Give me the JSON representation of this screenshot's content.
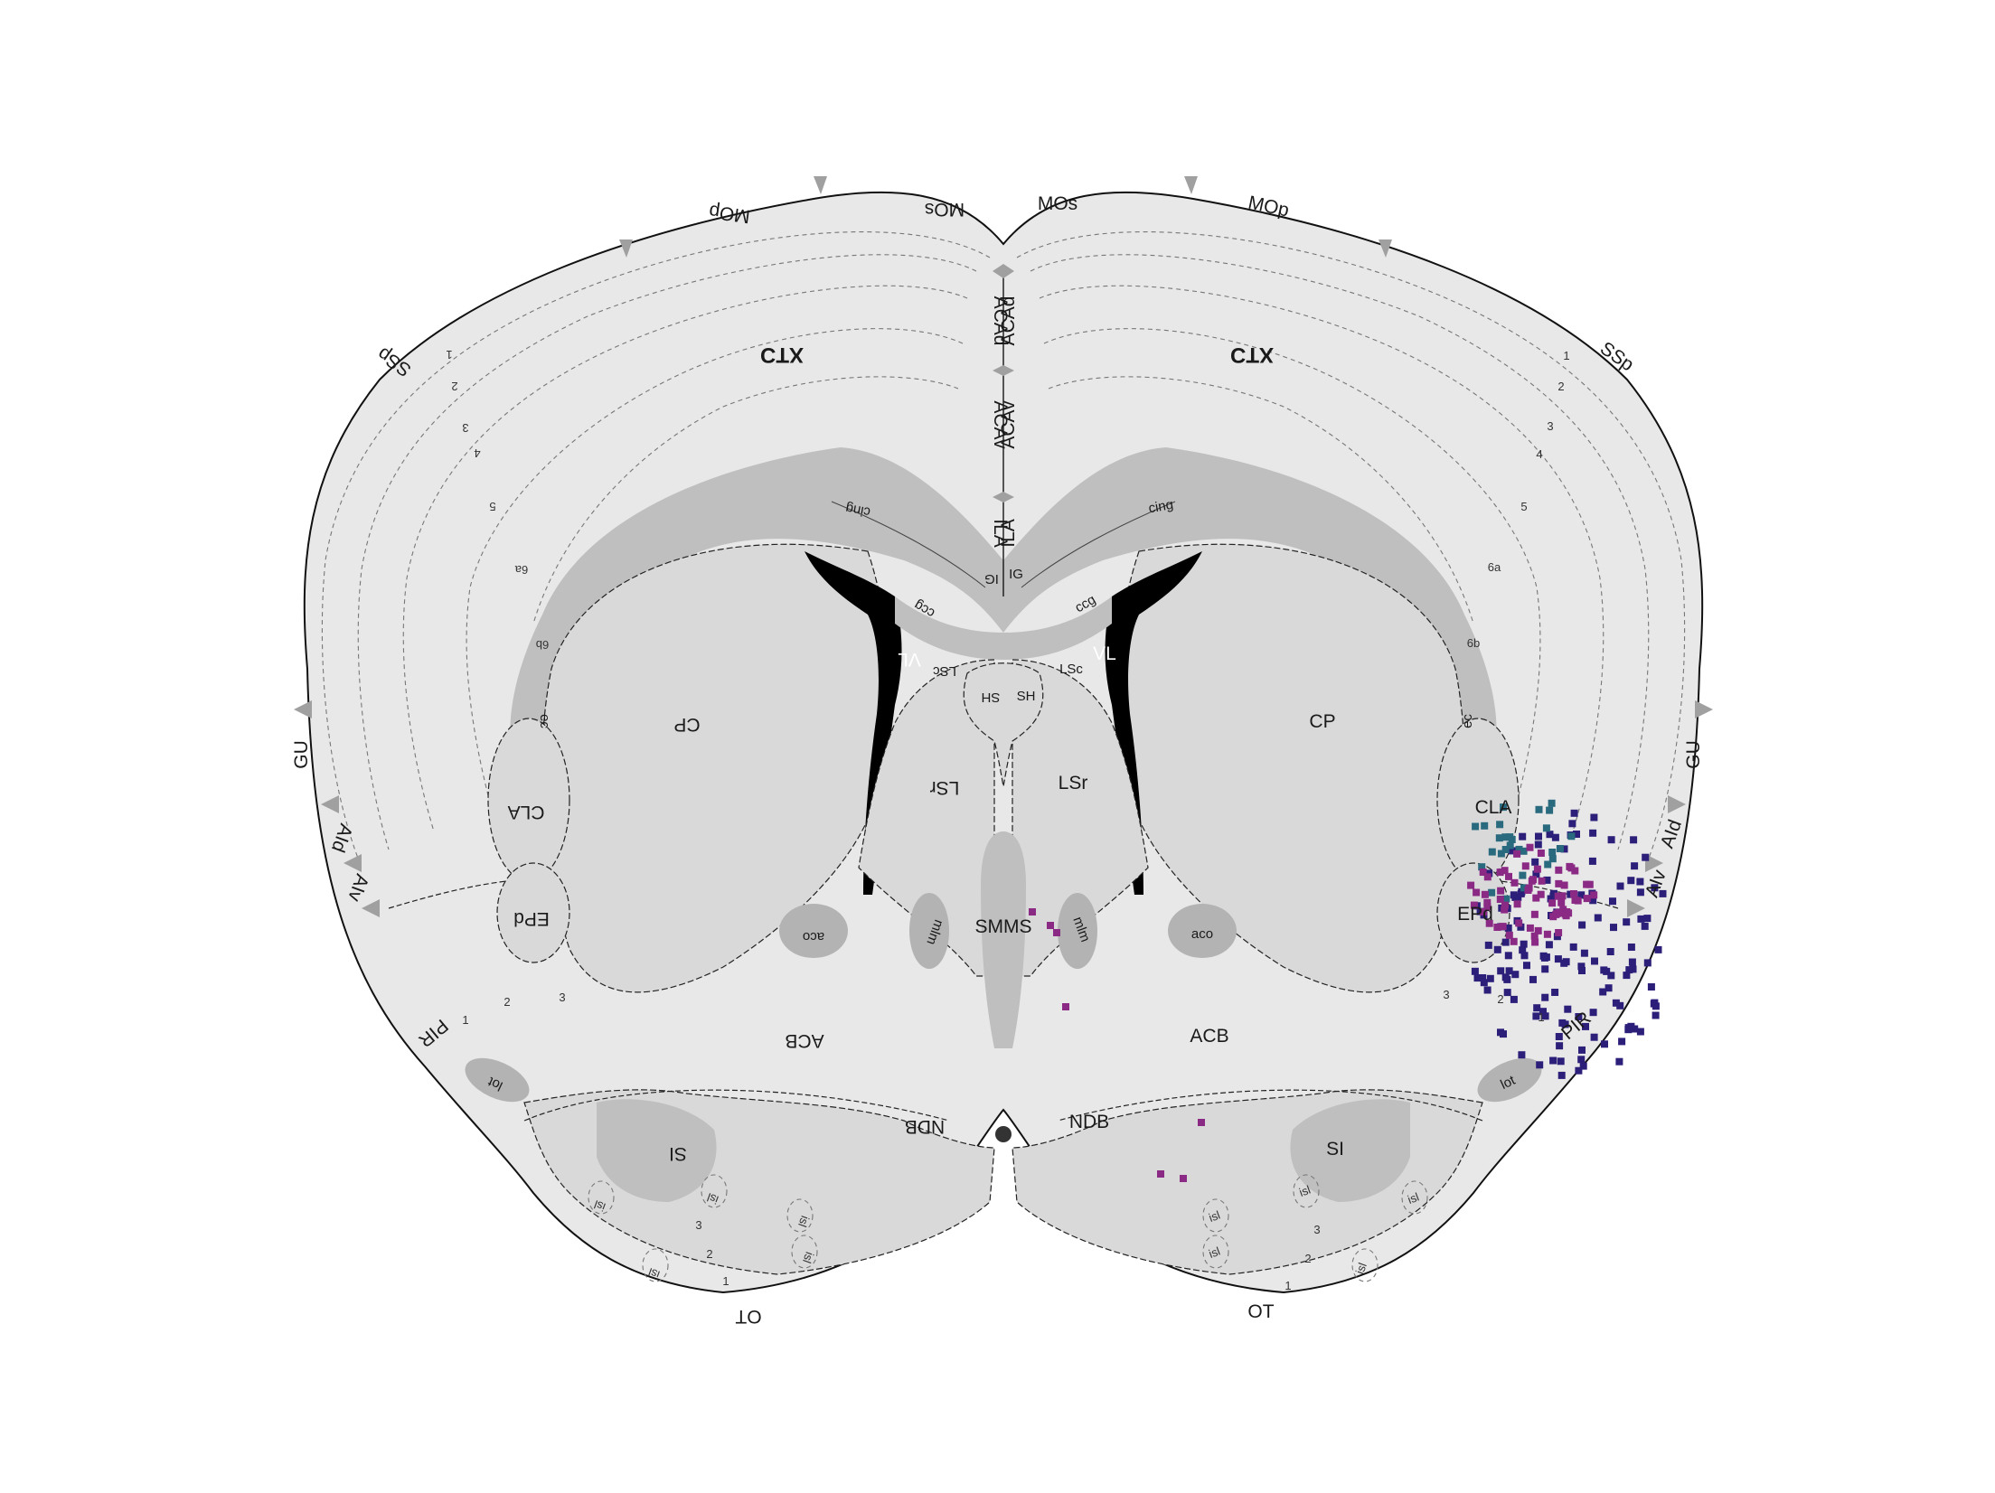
{
  "colors": {
    "outline": "#111111",
    "cortex_fill": "#e8e8e8",
    "subcortex_fill": "#d9d9d9",
    "fibre_fill": "#bfbfbf",
    "ventricle": "#000000",
    "marker": "#a0a0a0",
    "cluster_navy": "#2b1f7a",
    "cluster_teal": "#2a6a7f",
    "cluster_magenta": "#8a2a85"
  },
  "labels": {
    "ctx_left": "CTX",
    "ctx_right": "CTX",
    "mos_left": "MOs",
    "mos_right": "MOs",
    "mop_left": "MOp",
    "mop_right": "MOp",
    "ssp_left": "SSp",
    "ssp_right": "SSp",
    "gu_left": "GU",
    "gu_right": "GU",
    "aid_left": "AId",
    "aid_right": "AId",
    "aiv_left": "AIv",
    "aiv_right": "AIv",
    "pir_left": "PIR",
    "pir_right": "PIR",
    "acad_left": "ACAd",
    "acad_right": "ACAd",
    "acav_left": "ACAv",
    "acav_right": "ACAv",
    "ila_left": "ILA",
    "ila_right": "ILA",
    "ig_left": "IG",
    "ig_right": "IG",
    "cing_left": "cing",
    "cing_right": "cing",
    "ccg_left": "ccg",
    "ccg_right": "ccg",
    "vl_left": "VL",
    "vl_right": "VL",
    "lsc_left": "LSc",
    "lsc_right": "LSc",
    "sh_left": "SH",
    "sh_right": "SH",
    "cp_left": "CP",
    "cp_right": "CP",
    "ec_left": "ec",
    "ec_right": "ec",
    "cla_left": "CLA",
    "cla_right": "CLA",
    "lsr_left": "LSr",
    "lsr_right": "LSr",
    "epd_left": "EPd",
    "epd_right": "EPd",
    "aco_left": "aco",
    "aco_right": "aco",
    "mlm": "mlm",
    "smms": "SMMS",
    "ACB_left": "ACB",
    "ACB_right": "ACB",
    "ndb_left": "NDB",
    "ndb_right": "NDB",
    "si_left": "SI",
    "si_right": "SI",
    "lot_left": "lot",
    "lot_right": "lot",
    "isl": "isl",
    "ot_left": "OT",
    "ot_right": "OT"
  },
  "layer_numbers": {
    "l1": "1",
    "l2": "2",
    "l3": "3",
    "l4": "4",
    "l5": "5",
    "l6a": "6a",
    "l6b": "6b"
  },
  "cluster_groups": [
    "navy",
    "teal",
    "magenta"
  ]
}
